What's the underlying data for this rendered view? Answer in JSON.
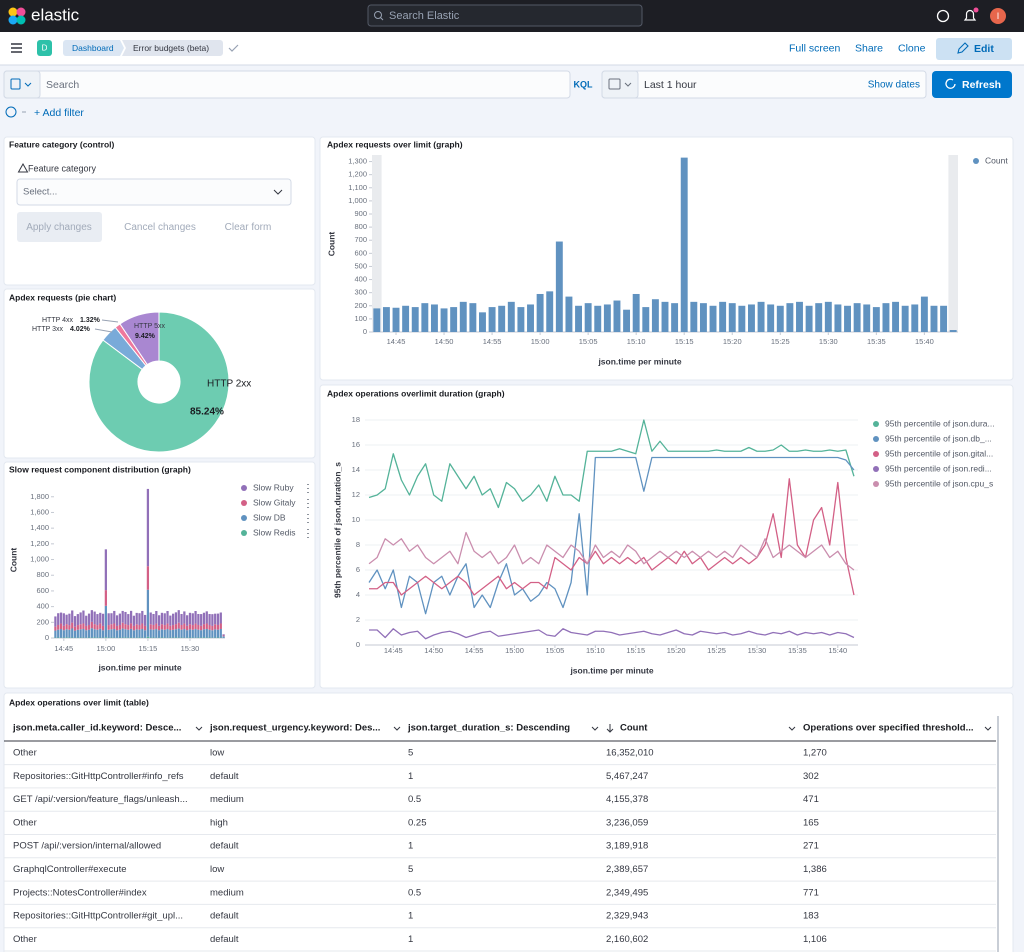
{
  "header": {
    "logo_text": "elastic",
    "search_placeholder": "Search Elastic",
    "avatar": "I"
  },
  "nav": {
    "space_badge": "D",
    "breadcrumbs": [
      "Dashboard",
      "Error budgets (beta)"
    ],
    "actions": [
      "Full screen",
      "Share",
      "Clone",
      "Edit"
    ]
  },
  "query_bar": {
    "search_placeholder": "Search",
    "language": "KQL",
    "time_range": "Last 1 hour",
    "show_dates": "Show dates",
    "refresh": "Refresh",
    "add_filter": "+ Add filter"
  },
  "control_panel": {
    "title": "Feature category (control)",
    "label": "Feature category",
    "placeholder": "Select...",
    "buttons": [
      "Apply changes",
      "Cancel changes",
      "Clear form"
    ]
  },
  "chart_data": [
    {
      "type": "pie",
      "title": "Apdex requests (pie chart)",
      "categories": [
        "HTTP 2xx",
        "HTTP 3xx",
        "HTTP 4xx",
        "HTTP 5xx"
      ],
      "values": [
        85.24,
        4.02,
        1.32,
        9.42
      ],
      "value_labels": [
        "85.24%",
        "4.02%",
        "1.32%",
        "9.42%"
      ],
      "colors": [
        "#6dccb1",
        "#79aad9",
        "#ee789d",
        "#a987d1"
      ]
    },
    {
      "type": "stacked_bar",
      "title": "Slow request component distribution (graph)",
      "xlabel": "json.time per minute",
      "ylabel": "Count",
      "grid": false,
      "categories": [
        null,
        null,
        null,
        "14:45",
        null,
        null,
        null,
        null,
        null,
        null,
        null,
        null,
        null,
        null,
        null,
        null,
        null,
        null,
        "15:00",
        null,
        null,
        null,
        null,
        null,
        null,
        null,
        null,
        null,
        null,
        null,
        null,
        null,
        null,
        "15:15",
        null,
        null,
        null,
        null,
        null,
        null,
        null,
        null,
        null,
        null,
        null,
        null,
        null,
        null,
        "15:30",
        null,
        null,
        null,
        null,
        null,
        null,
        null,
        null,
        null,
        null,
        null,
        null
      ],
      "ylim": [
        0,
        1950
      ],
      "yticks": [
        0,
        200,
        400,
        600,
        800,
        {
          "value": 1000,
          "label": "1,000"
        },
        {
          "value": 1200,
          "label": "1,200"
        },
        {
          "value": 1400,
          "label": "1,400"
        },
        {
          "value": 1600,
          "label": "1,600"
        },
        {
          "value": 1800,
          "label": "1,800"
        }
      ],
      "series": [
        {
          "name": "Slow Ruby",
          "color": "#9170b8",
          "values": [
            130,
            150,
            140,
            160,
            120,
            145,
            155,
            135,
            140,
            150,
            165,
            130,
            145,
            150,
            160,
            140,
            135,
            155,
            520,
            150,
            140,
            160,
            135,
            145,
            150,
            155,
            140,
            160,
            130,
            145,
            150,
            160,
            140,
            985,
            150,
            140,
            160,
            135,
            145,
            150,
            160,
            130,
            145,
            150,
            160,
            140,
            155,
            135,
            145,
            150,
            160,
            140,
            150,
            145,
            155,
            140,
            150,
            135,
            145,
            140,
            15
          ]
        },
        {
          "name": "Slow Gitaly",
          "color": "#d36086",
          "values": [
            50,
            60,
            70,
            55,
            65,
            60,
            75,
            50,
            60,
            65,
            70,
            55,
            60,
            80,
            65,
            60,
            70,
            55,
            200,
            60,
            65,
            70,
            55,
            60,
            75,
            65,
            60,
            70,
            55,
            65,
            60,
            70,
            55,
            300,
            65,
            60,
            70,
            55,
            65,
            60,
            70,
            55,
            60,
            65,
            75,
            60,
            70,
            55,
            65,
            60,
            70,
            60,
            55,
            65,
            70,
            60,
            55,
            65,
            60,
            70,
            10
          ]
        },
        {
          "name": "Slow DB",
          "color": "#6092c0",
          "values": [
            90,
            100,
            110,
            95,
            105,
            100,
            115,
            90,
            100,
            105,
            110,
            95,
            100,
            120,
            105,
            100,
            110,
            95,
            400,
            100,
            105,
            110,
            95,
            100,
            115,
            105,
            100,
            110,
            95,
            105,
            100,
            110,
            95,
            600,
            105,
            100,
            110,
            95,
            105,
            100,
            110,
            95,
            100,
            105,
            115,
            100,
            110,
            95,
            105,
            100,
            110,
            100,
            95,
            105,
            110,
            100,
            95,
            105,
            100,
            110,
            20
          ]
        },
        {
          "name": "Slow Redis",
          "color": "#54b399",
          "values": [
            5,
            6,
            4,
            5,
            7,
            5,
            6,
            4,
            5,
            6,
            5,
            4,
            6,
            5,
            7,
            5,
            6,
            4,
            10,
            5,
            6,
            5,
            4,
            6,
            5,
            7,
            5,
            6,
            4,
            5,
            6,
            5,
            4,
            15,
            5,
            6,
            4,
            5,
            6,
            5,
            4,
            6,
            5,
            7,
            5,
            6,
            4,
            5,
            6,
            5,
            4,
            6,
            5,
            7,
            5,
            6,
            4,
            5,
            6,
            5,
            2
          ]
        }
      ]
    },
    {
      "type": "bar",
      "title": "Apdex requests over limit (graph)",
      "xlabel": "json.time per minute",
      "ylabel": "Count",
      "grid": false,
      "categories": [
        null,
        null,
        "14:45",
        null,
        null,
        null,
        null,
        "14:50",
        null,
        null,
        null,
        null,
        "14:55",
        null,
        null,
        null,
        null,
        "15:00",
        null,
        null,
        null,
        null,
        "15:05",
        null,
        null,
        null,
        null,
        "15:10",
        null,
        null,
        null,
        null,
        "15:15",
        null,
        null,
        null,
        null,
        "15:20",
        null,
        null,
        null,
        null,
        "15:25",
        null,
        null,
        null,
        null,
        "15:30",
        null,
        null,
        null,
        null,
        "15:35",
        null,
        null,
        null,
        null,
        "15:40",
        null,
        null,
        null
      ],
      "ylim": [
        0,
        1350
      ],
      "yticks": [
        0,
        100,
        200,
        300,
        400,
        500,
        600,
        700,
        800,
        900,
        {
          "value": 1000,
          "label": "1,000"
        },
        {
          "value": 1100,
          "label": "1,100"
        },
        {
          "value": 1200,
          "label": "1,200"
        },
        {
          "value": 1300,
          "label": "1,300"
        }
      ],
      "series": [
        {
          "name": "Count",
          "color": "#6092c0",
          "values": [
            180,
            190,
            185,
            200,
            190,
            220,
            210,
            180,
            190,
            230,
            220,
            150,
            190,
            200,
            230,
            190,
            210,
            290,
            310,
            690,
            270,
            200,
            220,
            200,
            210,
            240,
            170,
            290,
            190,
            250,
            230,
            220,
            1330,
            230,
            220,
            200,
            230,
            220,
            200,
            210,
            230,
            210,
            200,
            220,
            230,
            200,
            220,
            230,
            210,
            200,
            220,
            210,
            190,
            220,
            230,
            200,
            210,
            270,
            200,
            200,
            15
          ]
        }
      ]
    },
    {
      "type": "line",
      "title": "Apdex operations overlimit duration (graph)",
      "xlabel": "json.time per minute",
      "ylabel": "95th percentile of json.duration_s",
      "grid": true,
      "categories": [
        null,
        null,
        null,
        "14:45",
        null,
        null,
        null,
        null,
        "14:50",
        null,
        null,
        null,
        null,
        "14:55",
        null,
        null,
        null,
        null,
        "15:00",
        null,
        null,
        null,
        null,
        "15:05",
        null,
        null,
        null,
        null,
        "15:10",
        null,
        null,
        null,
        null,
        "15:15",
        null,
        null,
        null,
        null,
        "15:20",
        null,
        null,
        null,
        null,
        "15:25",
        null,
        null,
        null,
        null,
        "15:30",
        null,
        null,
        null,
        null,
        "15:35",
        null,
        null,
        null,
        null,
        "15:40",
        null,
        null
      ],
      "ylim": [
        0,
        18.4
      ],
      "yticks": [
        0,
        2,
        4,
        6,
        8,
        10,
        12,
        14,
        16,
        18
      ],
      "series": [
        {
          "name": "95th percentile of json.dura...",
          "color": "#54b399",
          "values": [
            11.8,
            12,
            12.5,
            15.3,
            13.2,
            12,
            13.5,
            14.5,
            12,
            11.5,
            14.5,
            13.5,
            12.5,
            13.5,
            12,
            12.5,
            11,
            13,
            12.5,
            11.5,
            12,
            12.8,
            11.5,
            13.5,
            12,
            12,
            11.5,
            15.5,
            15.5,
            15.5,
            15.5,
            15.7,
            15.5,
            15.3,
            18,
            15.5,
            16.3,
            15.5,
            15.5,
            15.5,
            15.5,
            15.5,
            15.5,
            15.6,
            15.5,
            15.5,
            15.5,
            15.8,
            15.5,
            15.5,
            15.6,
            16,
            15.5,
            15.5,
            15.6,
            15.5,
            15.5,
            15.6,
            15.5,
            15.6,
            13.5
          ]
        },
        {
          "name": "95th percentile of json.db_...",
          "color": "#6092c0",
          "values": [
            5,
            6,
            4.5,
            6,
            3,
            5.5,
            5,
            2.5,
            5,
            5.5,
            4,
            5.5,
            6.5,
            3,
            4,
            3,
            5,
            6.5,
            4,
            4.5,
            3.5,
            4,
            5,
            4.5,
            3,
            5,
            10.5,
            4,
            15,
            15,
            15,
            15,
            15,
            15,
            12.3,
            15,
            15,
            15,
            15,
            15,
            15,
            15,
            15,
            15,
            15,
            15,
            15,
            15,
            15,
            15,
            15,
            15,
            15,
            15,
            15,
            15,
            15,
            15,
            15,
            14.8,
            14
          ]
        },
        {
          "name": "95th percentile of json.gital...",
          "color": "#d36086",
          "values": [
            4.5,
            4.5,
            5,
            5,
            4,
            4.5,
            5,
            5.5,
            5,
            4.5,
            5,
            5.5,
            5,
            4,
            4.5,
            5,
            5.5,
            4.5,
            5,
            4.5,
            5,
            5,
            4.5,
            7,
            6.5,
            6,
            7,
            6.5,
            7.5,
            6.5,
            7,
            6.5,
            7,
            6.5,
            7,
            6,
            6.5,
            7,
            6.5,
            7.5,
            6.5,
            7,
            6,
            6.5,
            7,
            6.5,
            7,
            6.5,
            7,
            8,
            10.5,
            7,
            13.3,
            8,
            7,
            10,
            11,
            8,
            13,
            7,
            4
          ]
        },
        {
          "name": "95th percentile of json.redi...",
          "color": "#9170b8",
          "values": [
            1.2,
            1.2,
            0.6,
            1.3,
            0.8,
            1,
            1.1,
            0.5,
            0.8,
            1,
            1.1,
            0.9,
            0.6,
            0.8,
            1,
            1.1,
            0.7,
            0.8,
            0.9,
            1,
            1.1,
            1.2,
            0.8,
            0.7,
            1.3,
            1,
            0.9,
            0.8,
            1.1,
            1.1,
            1,
            0.8,
            0.9,
            1,
            1.1,
            0.9,
            0.8,
            1,
            1.2,
            0.9,
            0.8,
            1.1,
            1,
            0.9,
            1,
            0.8,
            0.9,
            1.1,
            0.9,
            0.8,
            1,
            0.9,
            1.1,
            0.8,
            1,
            0.9,
            1,
            0.8,
            1,
            0.9,
            0.6
          ]
        },
        {
          "name": "95th percentile of json.cpu_s",
          "color": "#ca8eae",
          "values": [
            6.5,
            7,
            8.5,
            8,
            8.5,
            7.5,
            8,
            7,
            6.5,
            7,
            7.5,
            6.5,
            9,
            7.5,
            7,
            7.5,
            6.5,
            7,
            8,
            6.5,
            7,
            6.5,
            8,
            7.5,
            7,
            8,
            7.5,
            6.5,
            8,
            7,
            7.5,
            7,
            8,
            7.5,
            6.5,
            7,
            7.5,
            7,
            7.5,
            7,
            7.5,
            7,
            7.5,
            7,
            7.5,
            7,
            8,
            7.5,
            7,
            8.5,
            7,
            7.5,
            8,
            7.5,
            7,
            7.5,
            8,
            7,
            7.5,
            6.5,
            6
          ]
        }
      ]
    }
  ],
  "table": {
    "title": "Apdex operations over limit (table)",
    "columns": [
      "json.meta.caller_id.keyword: Desce...",
      "json.request_urgency.keyword: Des...",
      "json.target_duration_s: Descending",
      "Count",
      "Operations over specified threshold..."
    ],
    "rows": [
      [
        "Other",
        "low",
        "5",
        "16,352,010",
        "1,270"
      ],
      [
        "Repositories::GitHttpController#info_refs",
        "default",
        "1",
        "5,467,247",
        "302"
      ],
      [
        "GET /api/:version/feature_flags/unleash...",
        "medium",
        "0.5",
        "4,155,378",
        "471"
      ],
      [
        "Other",
        "high",
        "0.25",
        "3,236,059",
        "165"
      ],
      [
        "POST /api/:version/internal/allowed",
        "default",
        "1",
        "3,189,918",
        "271"
      ],
      [
        "GraphqlController#execute",
        "low",
        "5",
        "2,389,657",
        "1,386"
      ],
      [
        "Projects::NotesController#index",
        "medium",
        "0.5",
        "2,349,495",
        "771"
      ],
      [
        "Repositories::GitHttpController#git_upl...",
        "default",
        "1",
        "2,329,943",
        "183"
      ],
      [
        "Other",
        "default",
        "1",
        "2,160,602",
        "1,106"
      ]
    ]
  }
}
